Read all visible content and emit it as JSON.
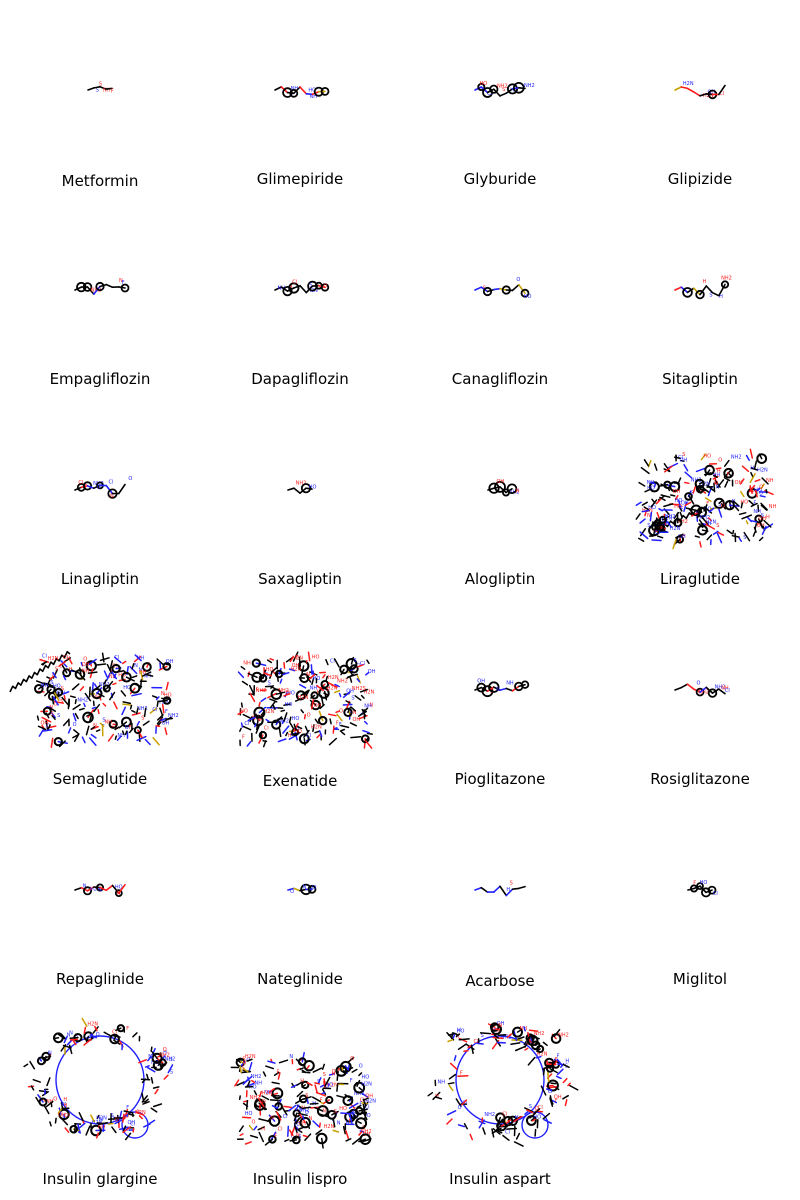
{
  "grid": {
    "items": [
      {
        "name": "Metformin",
        "size": "tiny",
        "seed": 11
      },
      {
        "name": "Glimepiride",
        "size": "small",
        "seed": 23
      },
      {
        "name": "Glyburide",
        "size": "small",
        "seed": 37
      },
      {
        "name": "Glipizide",
        "size": "small",
        "seed": 41
      },
      {
        "name": "Empagliflozin",
        "size": "small",
        "seed": 53
      },
      {
        "name": "Dapagliflozin",
        "size": "small",
        "seed": 67
      },
      {
        "name": "Canagliflozin",
        "size": "small",
        "seed": 71
      },
      {
        "name": "Sitagliptin",
        "size": "small",
        "seed": 83
      },
      {
        "name": "Linagliptin",
        "size": "small",
        "seed": 97
      },
      {
        "name": "Saxagliptin",
        "size": "tiny",
        "seed": 101
      },
      {
        "name": "Alogliptin",
        "size": "tiny",
        "seed": 113
      },
      {
        "name": "Liraglutide",
        "size": "large",
        "seed": 127
      },
      {
        "name": "Semaglutide",
        "size": "large",
        "seed": 131
      },
      {
        "name": "Exenatide",
        "size": "large",
        "seed": 149
      },
      {
        "name": "Pioglitazone",
        "size": "small",
        "seed": 157
      },
      {
        "name": "Rosiglitazone",
        "size": "small",
        "seed": 163
      },
      {
        "name": "Repaglinide",
        "size": "small",
        "seed": 179
      },
      {
        "name": "Nateglinide",
        "size": "tiny",
        "seed": 181
      },
      {
        "name": "Acarbose",
        "size": "small",
        "seed": 191
      },
      {
        "name": "Miglitol",
        "size": "tiny",
        "seed": 199
      },
      {
        "name": "Insulin glargine",
        "size": "ring",
        "seed": 211
      },
      {
        "name": "Insulin lispro",
        "size": "large",
        "seed": 223
      },
      {
        "name": "Insulin aspart",
        "size": "ring",
        "seed": 227
      }
    ]
  },
  "atom_colors": {
    "carbon": "#000000",
    "nitrogen": "#2020ff",
    "oxygen": "#ff1a1a",
    "sulfur": "#c8a000",
    "halogen": "#33dd33"
  },
  "atom_labels": [
    "NH",
    "NH2",
    "H2N",
    "HO",
    "OH",
    "O",
    "N",
    "S",
    "F",
    "Cl",
    "H"
  ]
}
